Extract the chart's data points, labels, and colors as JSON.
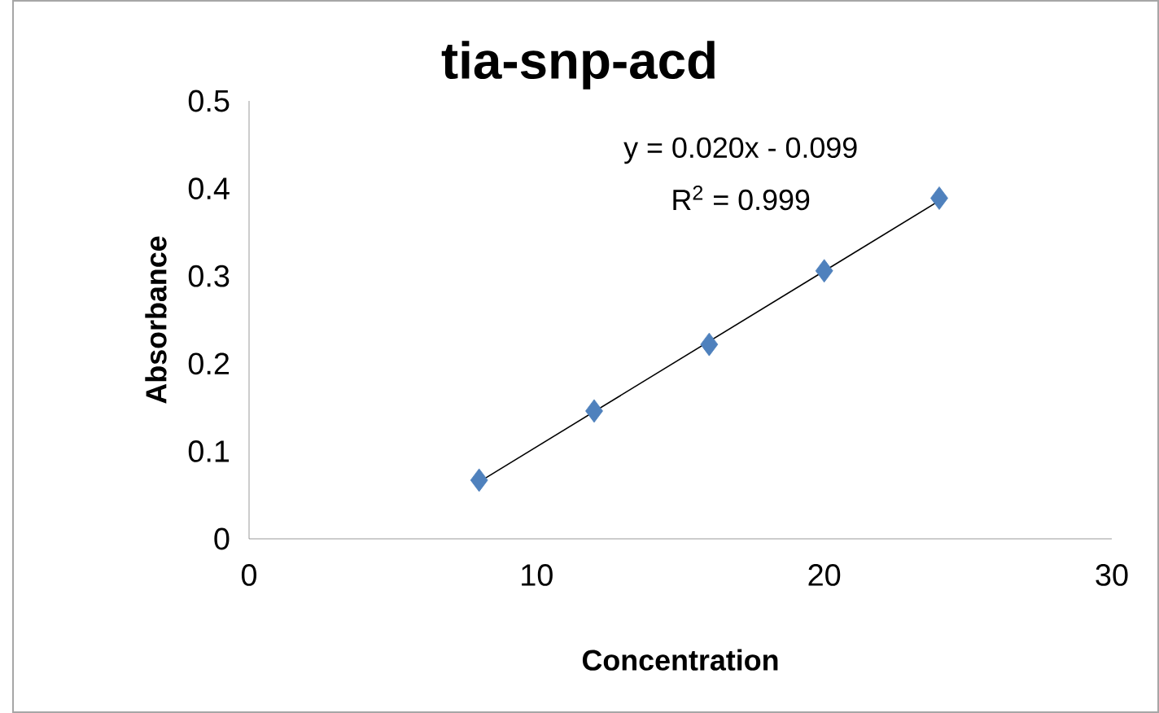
{
  "chart_data": {
    "type": "scatter",
    "title": "tia-snp-acd",
    "xlabel": "Concentration",
    "ylabel": "Absorbance",
    "xlim": [
      0,
      30
    ],
    "ylim": [
      0,
      0.5
    ],
    "xticks": [
      0,
      10,
      20,
      30
    ],
    "yticks": [
      0,
      0.1,
      0.2,
      0.3,
      0.4,
      0.5
    ],
    "series": [
      {
        "color": "#4f81bd",
        "x": [
          8,
          12,
          16,
          20,
          24
        ],
        "values": [
          0.067,
          0.146,
          0.222,
          0.306,
          0.389
        ]
      },
      {
        "type": "line",
        "color": "#000000",
        "marker": "none",
        "line_style": "solid",
        "x": [
          8,
          24
        ],
        "values": [
          0.065,
          0.386
        ]
      }
    ],
    "annotations": [
      "y = 0.020x - 0.099",
      "R$^{2}$ = 0.999"
    ],
    "marker": "diamond"
  }
}
